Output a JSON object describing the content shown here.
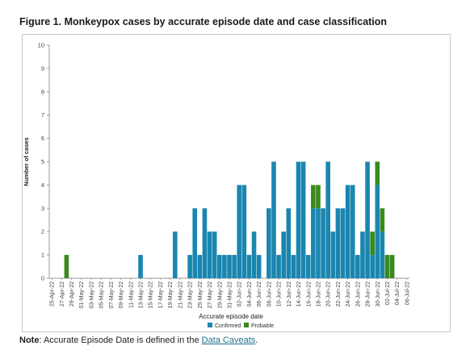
{
  "figure": {
    "title": "Figure 1. Monkeypox cases by accurate episode date and case classification"
  },
  "note": {
    "label": "Note",
    "text": ": Accurate Episode Date is defined in the ",
    "link": "Data Caveats",
    "end": "."
  },
  "chart_data": {
    "type": "bar",
    "stacked": true,
    "xlabel": "Accurate episode date",
    "ylabel": "Number of cases",
    "ylim": [
      0,
      10
    ],
    "yticks": [
      0,
      1,
      2,
      3,
      4,
      5,
      6,
      7,
      8,
      9,
      10
    ],
    "grid": false,
    "legend": "bottom",
    "tick_labels": [
      "25-Apr-22",
      "27-Apr-22",
      "29-Apr-22",
      "01-May-22",
      "03-May-22",
      "05-May-22",
      "07-May-22",
      "09-May-22",
      "11-May-22",
      "13-May-22",
      "15-May-22",
      "17-May-22",
      "19-May-22",
      "21-May-22",
      "23-May-22",
      "25-May-22",
      "27-May-22",
      "29-May-22",
      "31-May-22",
      "02-Jun-22",
      "04-Jun-22",
      "06-Jun-22",
      "08-Jun-22",
      "10-Jun-22",
      "12-Jun-22",
      "14-Jun-22",
      "16-Jun-22",
      "18-Jun-22",
      "20-Jun-22",
      "22-Jun-22",
      "24-Jun-22",
      "26-Jun-22",
      "28-Jun-22",
      "30-Jun-22",
      "02-Jul-22",
      "04-Jul-22",
      "06-Jul-22"
    ],
    "categories": [
      "25-Apr-22",
      "26-Apr-22",
      "27-Apr-22",
      "28-Apr-22",
      "29-Apr-22",
      "30-Apr-22",
      "01-May-22",
      "02-May-22",
      "03-May-22",
      "04-May-22",
      "05-May-22",
      "06-May-22",
      "07-May-22",
      "08-May-22",
      "09-May-22",
      "10-May-22",
      "11-May-22",
      "12-May-22",
      "13-May-22",
      "14-May-22",
      "15-May-22",
      "16-May-22",
      "17-May-22",
      "18-May-22",
      "19-May-22",
      "20-May-22",
      "21-May-22",
      "22-May-22",
      "23-May-22",
      "24-May-22",
      "25-May-22",
      "26-May-22",
      "27-May-22",
      "28-May-22",
      "29-May-22",
      "30-May-22",
      "31-May-22",
      "01-Jun-22",
      "02-Jun-22",
      "03-Jun-22",
      "04-Jun-22",
      "05-Jun-22",
      "06-Jun-22",
      "07-Jun-22",
      "08-Jun-22",
      "09-Jun-22",
      "10-Jun-22",
      "11-Jun-22",
      "12-Jun-22",
      "13-Jun-22",
      "14-Jun-22",
      "15-Jun-22",
      "16-Jun-22",
      "17-Jun-22",
      "18-Jun-22",
      "19-Jun-22",
      "20-Jun-22",
      "21-Jun-22",
      "22-Jun-22",
      "23-Jun-22",
      "24-Jun-22",
      "25-Jun-22",
      "26-Jun-22",
      "27-Jun-22",
      "28-Jun-22",
      "29-Jun-22",
      "30-Jun-22",
      "01-Jul-22",
      "02-Jul-22",
      "03-Jul-22",
      "04-Jul-22",
      "05-Jul-22",
      "06-Jul-22"
    ],
    "series": [
      {
        "name": "Confirmed",
        "color": "#1a86b0",
        "values": [
          0,
          0,
          0,
          0,
          0,
          0,
          0,
          0,
          0,
          0,
          0,
          0,
          0,
          0,
          0,
          0,
          0,
          0,
          1,
          0,
          0,
          0,
          0,
          0,
          0,
          2,
          0,
          0,
          1,
          3,
          1,
          3,
          2,
          2,
          1,
          1,
          1,
          1,
          4,
          4,
          1,
          2,
          1,
          0,
          3,
          5,
          1,
          2,
          3,
          1,
          5,
          5,
          1,
          3,
          3,
          3,
          5,
          2,
          3,
          3,
          4,
          4,
          1,
          2,
          5,
          1,
          4,
          2,
          0,
          0,
          0,
          0,
          0
        ]
      },
      {
        "name": "Probable",
        "color": "#3a8a1e",
        "values": [
          0,
          0,
          0,
          1,
          0,
          0,
          0,
          0,
          0,
          0,
          0,
          0,
          0,
          0,
          0,
          0,
          0,
          0,
          0,
          0,
          0,
          0,
          0,
          0,
          0,
          0,
          0,
          0,
          0,
          0,
          0,
          0,
          0,
          0,
          0,
          0,
          0,
          0,
          0,
          0,
          0,
          0,
          0,
          0,
          0,
          0,
          0,
          0,
          0,
          0,
          0,
          0,
          0,
          1,
          1,
          0,
          0,
          0,
          0,
          0,
          0,
          0,
          0,
          0,
          0,
          1,
          1,
          1,
          1,
          1,
          0,
          0,
          0
        ]
      }
    ]
  }
}
